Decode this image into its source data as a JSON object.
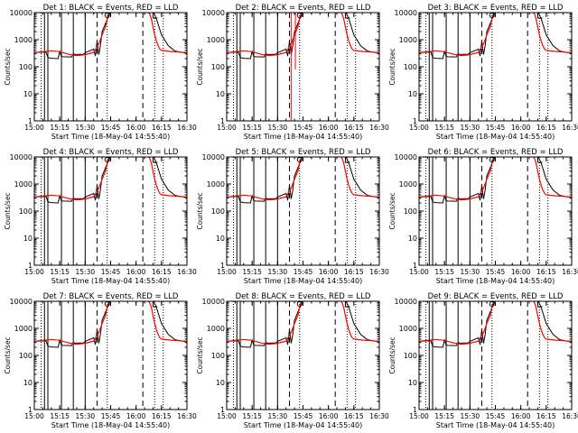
{
  "chart_data": [
    {
      "type": "line",
      "title": "Det 1: BLACK = Events, RED = LLD"
    },
    {
      "type": "line",
      "title": "Det 2: BLACK = Events, RED = LLD",
      "spike": true
    },
    {
      "type": "line",
      "title": "Det 3: BLACK = Events, RED = LLD"
    },
    {
      "type": "line",
      "title": "Det 4: BLACK = Events, RED = LLD"
    },
    {
      "type": "line",
      "title": "Det 5: BLACK = Events, RED = LLD"
    },
    {
      "type": "line",
      "title": "Det 6: BLACK = Events, RED = LLD"
    },
    {
      "type": "line",
      "title": "Det 7: BLACK = Events, RED = LLD"
    },
    {
      "type": "line",
      "title": "Det 8: BLACK = Events, RED = LLD"
    },
    {
      "type": "line",
      "title": "Det 9: BLACK = Events, RED = LLD"
    }
  ],
  "shared": {
    "scale": "log",
    "ylabel": "Counts/sec",
    "xlabel": "Start Time (18-May-04 14:55:40)",
    "xticks": [
      "15:00",
      "15:15",
      "15:30",
      "15:45",
      "16:00",
      "16:15",
      "16:30"
    ],
    "yticks": [
      "1",
      "10",
      "100",
      "1000",
      "10000"
    ],
    "xrange_min": [
      5,
      95
    ],
    "yrange": [
      1,
      10000
    ],
    "series_colors": {
      "events": "#000000",
      "lld": "#ff0000"
    },
    "events_series": {
      "x": [
        5,
        11,
        12,
        13,
        14,
        15,
        19,
        20,
        21,
        22,
        27,
        28,
        29,
        34,
        35,
        40,
        41,
        42,
        43,
        44,
        45,
        49,
        50,
        51,
        52,
        53,
        54,
        55,
        56,
        58,
        60,
        62,
        64,
        66,
        68,
        70,
        73,
        75,
        77,
        80,
        84,
        88,
        92,
        95
      ],
      "y": [
        330,
        350,
        345,
        220,
        210,
        205,
        200,
        370,
        240,
        235,
        230,
        300,
        285,
        290,
        330,
        450,
        250,
        900,
        280,
        600,
        2000,
        8000,
        12000,
        12000,
        12000,
        12000,
        12000,
        12000,
        12000,
        12000,
        12000,
        12000,
        12000,
        12000,
        12000,
        12000,
        12000,
        12000,
        6000,
        1500,
        600,
        380,
        340,
        320
      ]
    },
    "lld_series": {
      "x": [
        5,
        10,
        15,
        20,
        25,
        30,
        35,
        40,
        43,
        45,
        47,
        48,
        49,
        50,
        72,
        73,
        74,
        75,
        76,
        77,
        78,
        79,
        80,
        85,
        90,
        95
      ],
      "y": [
        330,
        360,
        390,
        360,
        290,
        260,
        280,
        340,
        700,
        1500,
        3000,
        6000,
        10000,
        12000,
        12000,
        9000,
        6000,
        3000,
        1500,
        900,
        600,
        450,
        400,
        370,
        350,
        330
      ]
    },
    "solid_vlines": [
      11,
      13,
      21,
      28,
      35
    ],
    "dashed_vlines": [
      42,
      69
    ],
    "dotted_vlines": [
      9,
      48,
      76,
      81
    ],
    "markers": [
      {
        "shape": "circle",
        "x": 48
      },
      {
        "shape": "corner",
        "x": 75
      }
    ]
  }
}
